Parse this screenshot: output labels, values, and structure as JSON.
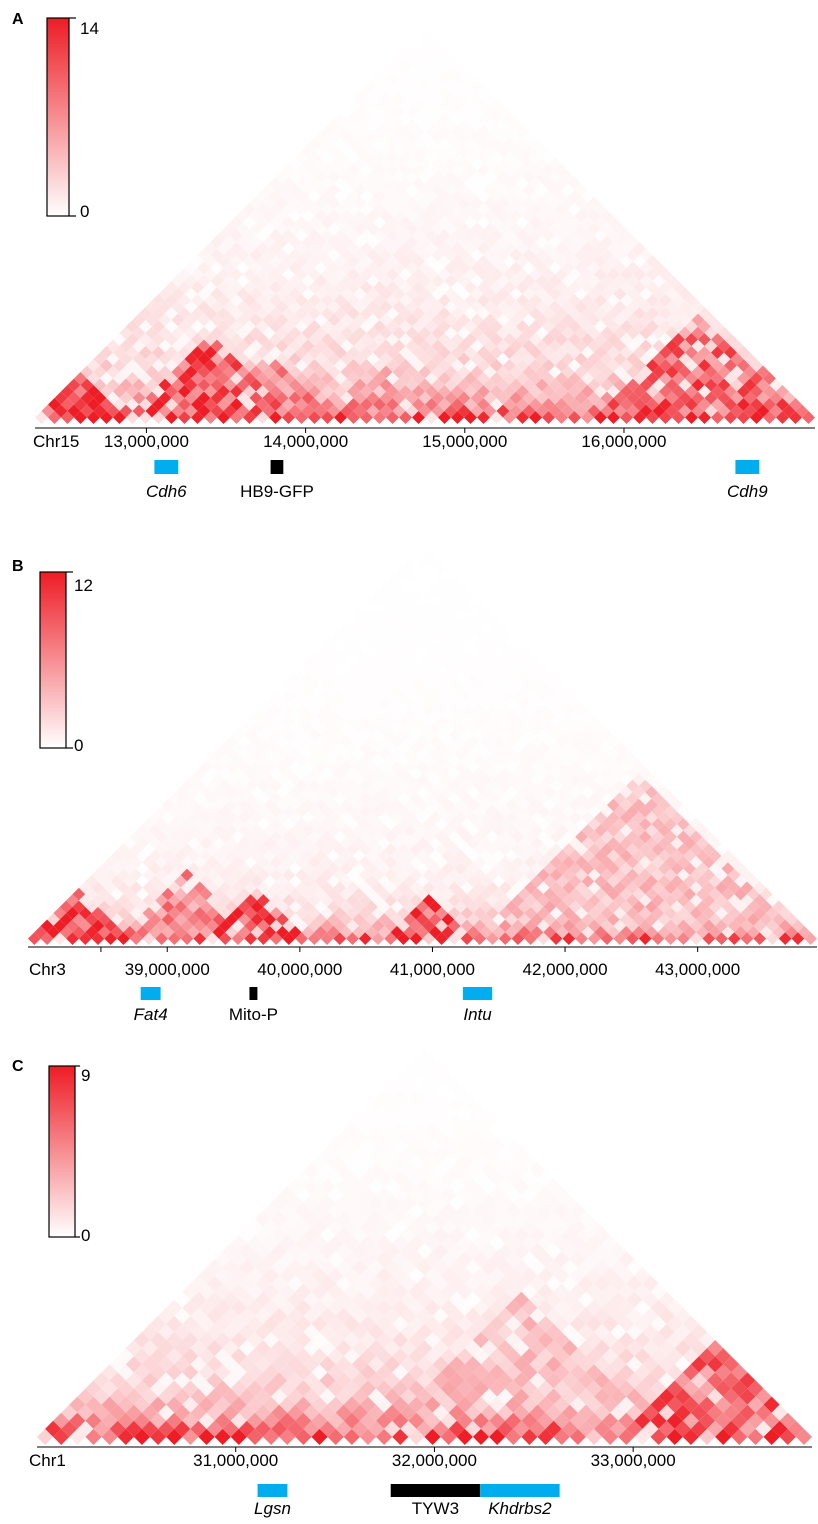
{
  "colors": {
    "heat_high": "#ee1c25",
    "heat_low": "#ffffff",
    "gene_blue": "#00aeef",
    "gene_black": "#000000",
    "axis": "#000000"
  },
  "chart_data": [
    {
      "type": "heatmap",
      "panel": "A",
      "chromosome": "Chr15",
      "scale": {
        "min": 0,
        "max": 14,
        "min_label": "0",
        "max_label": "14"
      },
      "xlim": [
        12300000,
        17200000
      ],
      "ticks": [
        {
          "value": 13000000,
          "label": "13,000,000"
        },
        {
          "value": 14000000,
          "label": "14,000,000"
        },
        {
          "value": 15000000,
          "label": "15,000,000"
        },
        {
          "value": 16000000,
          "label": "16,000,000"
        }
      ],
      "domains": [
        {
          "start": 12300000,
          "end": 12900000,
          "strength": 0.85
        },
        {
          "start": 12850000,
          "end": 13900000,
          "strength": 0.8
        },
        {
          "start": 13400000,
          "end": 14150000,
          "strength": 0.55
        },
        {
          "start": 14100000,
          "end": 14850000,
          "strength": 0.4
        },
        {
          "start": 15850000,
          "end": 17100000,
          "strength": 0.7
        },
        {
          "start": 16550000,
          "end": 17200000,
          "strength": 0.5
        }
      ],
      "base_intensity": 0.3,
      "genes": [
        {
          "label": "Cdh6",
          "start": 13050000,
          "end": 13200000,
          "color": "blue",
          "italic": true
        },
        {
          "label": "HB9-GFP",
          "start": 13780000,
          "end": 13860000,
          "color": "black",
          "italic": false
        },
        {
          "label": "Cdh9",
          "start": 16700000,
          "end": 16850000,
          "color": "blue",
          "italic": true
        }
      ]
    },
    {
      "type": "heatmap",
      "panel": "B",
      "chromosome": "Chr3",
      "scale": {
        "min": 0,
        "max": 12,
        "min_label": "0",
        "max_label": "12"
      },
      "xlim": [
        37950000,
        43900000
      ],
      "ticks": [
        {
          "value": 38500000,
          "label": ""
        },
        {
          "value": 39000000,
          "label": "39,000,000"
        },
        {
          "value": 40000000,
          "label": "40,000,000"
        },
        {
          "value": 41000000,
          "label": "41,000,000"
        },
        {
          "value": 42000000,
          "label": "42,000,000"
        },
        {
          "value": 43000000,
          "label": "43,000,000"
        }
      ],
      "domains": [
        {
          "start": 37950000,
          "end": 38700000,
          "strength": 0.85
        },
        {
          "start": 38650000,
          "end": 39700000,
          "strength": 0.55
        },
        {
          "start": 39300000,
          "end": 40050000,
          "strength": 0.8
        },
        {
          "start": 40600000,
          "end": 41300000,
          "strength": 0.8
        },
        {
          "start": 41300000,
          "end": 43800000,
          "strength": 0.3
        }
      ],
      "base_intensity": 0.12,
      "genes": [
        {
          "label": "Fat4",
          "start": 38800000,
          "end": 38950000,
          "color": "blue",
          "italic": true
        },
        {
          "label": "Mito-P",
          "start": 39620000,
          "end": 39680000,
          "color": "black",
          "italic": false
        },
        {
          "label": "Intu",
          "start": 41230000,
          "end": 41450000,
          "color": "blue",
          "italic": true
        }
      ]
    },
    {
      "type": "heatmap",
      "panel": "C",
      "chromosome": "Chr1",
      "scale": {
        "min": 0,
        "max": 9,
        "min_label": "0",
        "max_label": "9"
      },
      "xlim": [
        30000000,
        33900000
      ],
      "ticks": [
        {
          "value": 31000000,
          "label": "31,000,000"
        },
        {
          "value": 32000000,
          "label": "32,000,000"
        },
        {
          "value": 33000000,
          "label": "33,000,000"
        }
      ],
      "domains": [
        {
          "start": 32900000,
          "end": 33900000,
          "strength": 0.7
        },
        {
          "start": 31700000,
          "end": 33200000,
          "strength": 0.3
        }
      ],
      "base_intensity": 0.3,
      "genes": [
        {
          "label": "Lgsn",
          "start": 31110000,
          "end": 31260000,
          "color": "blue",
          "italic": true
        },
        {
          "label": "TYW3",
          "start": 31780000,
          "end": 32230000,
          "color": "black",
          "italic": false
        },
        {
          "label": "Khdrbs2",
          "start": 32230000,
          "end": 32630000,
          "color": "blue",
          "italic": true
        }
      ]
    }
  ]
}
